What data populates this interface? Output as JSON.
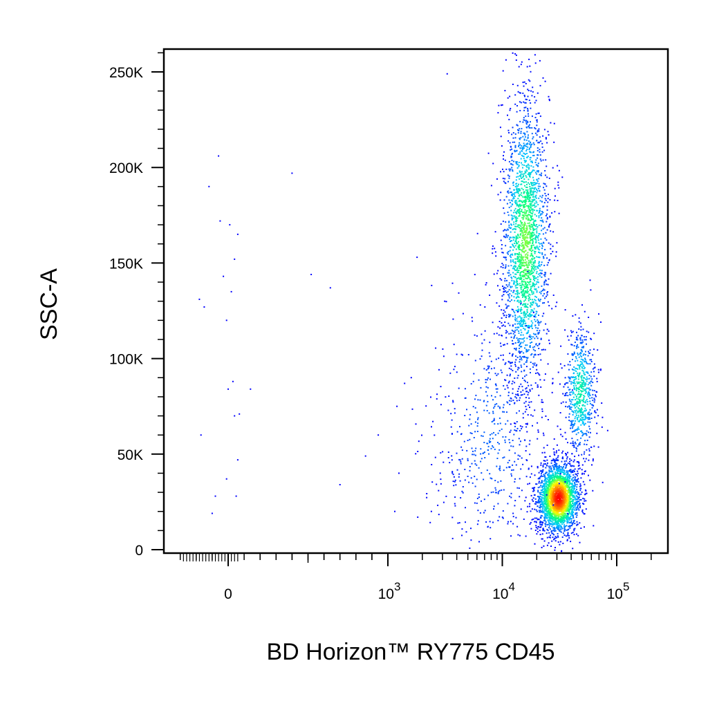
{
  "chart_data": {
    "type": "scatter",
    "xlabel": "BD Horizon™ RY775 CD45",
    "ylabel": "SSC-A",
    "x_scale": "biexponential",
    "y_scale": "linear",
    "xlim": [
      -300,
      200000
    ],
    "ylim": [
      -3000,
      263000
    ],
    "y_ticks": [
      {
        "value": 0,
        "label": "0"
      },
      {
        "value": 50000,
        "label": "50K"
      },
      {
        "value": 100000,
        "label": "100K"
      },
      {
        "value": 150000,
        "label": "150K"
      },
      {
        "value": 200000,
        "label": "200K"
      },
      {
        "value": 250000,
        "label": "250K"
      }
    ],
    "x_ticks": [
      {
        "value": 0,
        "label": "0",
        "exp": ""
      },
      {
        "value": 1000,
        "label": "10",
        "exp": "3"
      },
      {
        "value": 10000,
        "label": "10",
        "exp": "4"
      },
      {
        "value": 100000,
        "label": "10",
        "exp": "5"
      }
    ],
    "color_scale": [
      "#0000ff",
      "#00c8ff",
      "#00ff80",
      "#ffff00",
      "#ff8000",
      "#ff0000"
    ],
    "grid": false,
    "legend": "none",
    "populations": [
      {
        "name": "",
        "x_center": 16000,
        "y_center": 160000,
        "x_spread_decades": 0.1,
        "y_spread": 38000,
        "count": 2200,
        "peak_density": 0.5
      },
      {
        "name": "",
        "x_center": 31000,
        "y_center": 27000,
        "x_spread_decades": 0.09,
        "y_spread": 9000,
        "count": 2600,
        "peak_density": 1.0
      },
      {
        "name": "",
        "x_center": 48000,
        "y_center": 82000,
        "x_spread_decades": 0.07,
        "y_spread": 18000,
        "count": 650,
        "peak_density": 0.35
      },
      {
        "name": "",
        "x_center": 8000,
        "y_center": 60000,
        "x_spread_decades": 0.25,
        "y_spread": 35000,
        "count": 600,
        "peak_density": 0.1
      }
    ],
    "sparse_events": [
      {
        "x": -60,
        "y": 206000
      },
      {
        "x": -120,
        "y": 190000
      },
      {
        "x": -50,
        "y": 172000
      },
      {
        "x": 10,
        "y": 170000
      },
      {
        "x": 60,
        "y": 165000
      },
      {
        "x": 40,
        "y": 152000
      },
      {
        "x": -30,
        "y": 143000
      },
      {
        "x": 20,
        "y": 135000
      },
      {
        "x": -180,
        "y": 131000
      },
      {
        "x": -150,
        "y": 127000
      },
      {
        "x": -10,
        "y": 120000
      },
      {
        "x": 0,
        "y": 84000
      },
      {
        "x": 30,
        "y": 88000
      },
      {
        "x": 40,
        "y": 70000
      },
      {
        "x": 70,
        "y": 71000
      },
      {
        "x": -170,
        "y": 60000
      },
      {
        "x": 60,
        "y": 47000
      },
      {
        "x": -10,
        "y": 37000
      },
      {
        "x": -80,
        "y": 28000
      },
      {
        "x": 50,
        "y": 28000
      },
      {
        "x": -100,
        "y": 19000
      },
      {
        "x": 140,
        "y": 84000
      },
      {
        "x": 400,
        "y": 197000
      },
      {
        "x": 520,
        "y": 144000
      },
      {
        "x": 640,
        "y": 137000
      },
      {
        "x": 700,
        "y": 34000
      },
      {
        "x": 860,
        "y": 49000
      },
      {
        "x": 940,
        "y": 60000
      },
      {
        "x": 1150,
        "y": 20000
      },
      {
        "x": 1250,
        "y": 40000
      },
      {
        "x": 1400,
        "y": 87000
      },
      {
        "x": 1800,
        "y": 153000
      },
      {
        "x": 2400,
        "y": 20000
      },
      {
        "x": 3300,
        "y": 249000
      },
      {
        "x": 1200,
        "y": 75000
      },
      {
        "x": 1600,
        "y": 90000
      }
    ]
  }
}
